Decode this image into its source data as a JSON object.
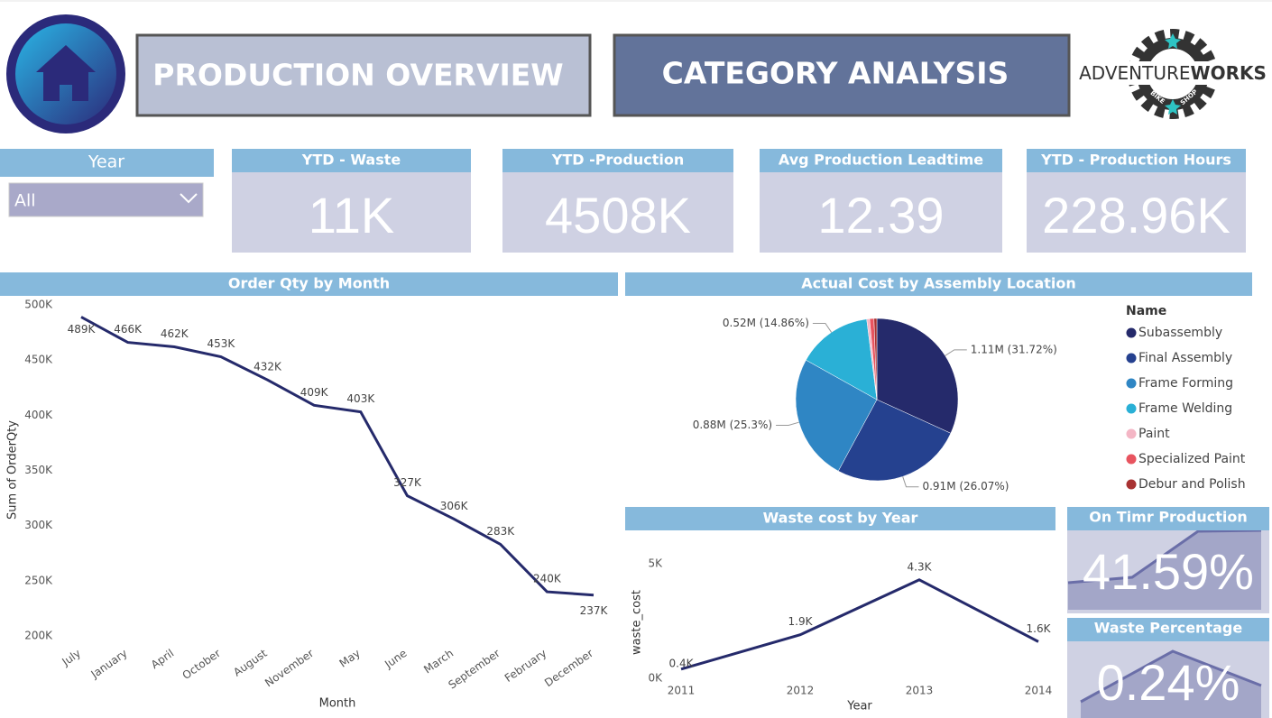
{
  "buttons": [
    "PRODUCTION OVERVIEW",
    "CATEGORY ANALYSIS"
  ],
  "logo": {
    "brand_light": "ADVENTURE",
    "brand_bold": "WORKS",
    "left": "BIKE",
    "right": "SHOP"
  },
  "slicer": {
    "label": "Year",
    "value": "All"
  },
  "kpis": [
    {
      "title": "YTD - Waste",
      "value": "11K"
    },
    {
      "title": "YTD -Production",
      "value": "4508K"
    },
    {
      "title": "Avg Production Leadtime",
      "value": "12.39"
    },
    {
      "title": "YTD - Production Hours",
      "value": "228.96K"
    }
  ],
  "chart_data": [
    {
      "type": "line",
      "title": "Order Qty by Month",
      "x_label": "Month",
      "y_label": "Sum of OrderQty",
      "categories": [
        "July",
        "January",
        "April",
        "October",
        "August",
        "November",
        "May",
        "June",
        "March",
        "September",
        "February",
        "December"
      ],
      "values": [
        489000,
        466000,
        462000,
        453000,
        432000,
        409000,
        403000,
        327000,
        306000,
        283000,
        240000,
        237000
      ],
      "value_labels": [
        "489K",
        "466K",
        "462K",
        "453K",
        "432K",
        "409K",
        "403K",
        "327K",
        "306K",
        "283K",
        "240K",
        "237K"
      ],
      "color": "#252a6b",
      "ylim": [
        200000,
        500000
      ],
      "yticks": [
        {
          "value": 200000,
          "label": "200K"
        },
        {
          "value": 250000,
          "label": "250K"
        },
        {
          "value": 300000,
          "label": "300K"
        },
        {
          "value": 350000,
          "label": "350K"
        },
        {
          "value": 400000,
          "label": "400K"
        },
        {
          "value": 450000,
          "label": "450K"
        },
        {
          "value": 500000,
          "label": "500K"
        }
      ]
    },
    {
      "type": "pie",
      "title": "Actual Cost by Assembly Location",
      "legend_title": "Name",
      "categories": [
        "Subassembly",
        "Final Assembly",
        "Frame Forming",
        "Frame Welding",
        "Paint",
        "Specialized Paint",
        "Debur and Polish"
      ],
      "values": [
        1.11,
        0.91,
        0.88,
        0.52,
        0.02,
        0.03,
        0.02
      ],
      "value_labels": [
        "1.11M (31.72%)",
        "0.91M (26.07%)",
        "0.88M (25.3%)",
        "0.52M (14.86%)",
        null,
        null,
        null
      ],
      "colors": [
        "#252a6b",
        "#25418f",
        "#2f86c4",
        "#2ab0d6",
        "#f4b6c5",
        "#e8545f",
        "#a83232"
      ]
    },
    {
      "type": "line",
      "title": "Waste cost by Year",
      "x_label": "Year",
      "y_label": "waste_cost",
      "categories": [
        "2011",
        "2012",
        "2013",
        "2014"
      ],
      "values": [
        400,
        1900,
        4300,
        1600
      ],
      "value_labels": [
        "0.4K",
        "1.9K",
        "4.3K",
        "1.6K"
      ],
      "color": "#252a6b",
      "ylim": [
        0,
        5000
      ],
      "yticks": [
        {
          "value": 0,
          "label": "0K"
        },
        {
          "value": 5000,
          "label": "5K"
        }
      ]
    }
  ],
  "mini_kpis": [
    {
      "title": "On Timr Production",
      "value": "41.59%"
    },
    {
      "title": "Waste Percentage",
      "value": "0.24%"
    }
  ]
}
